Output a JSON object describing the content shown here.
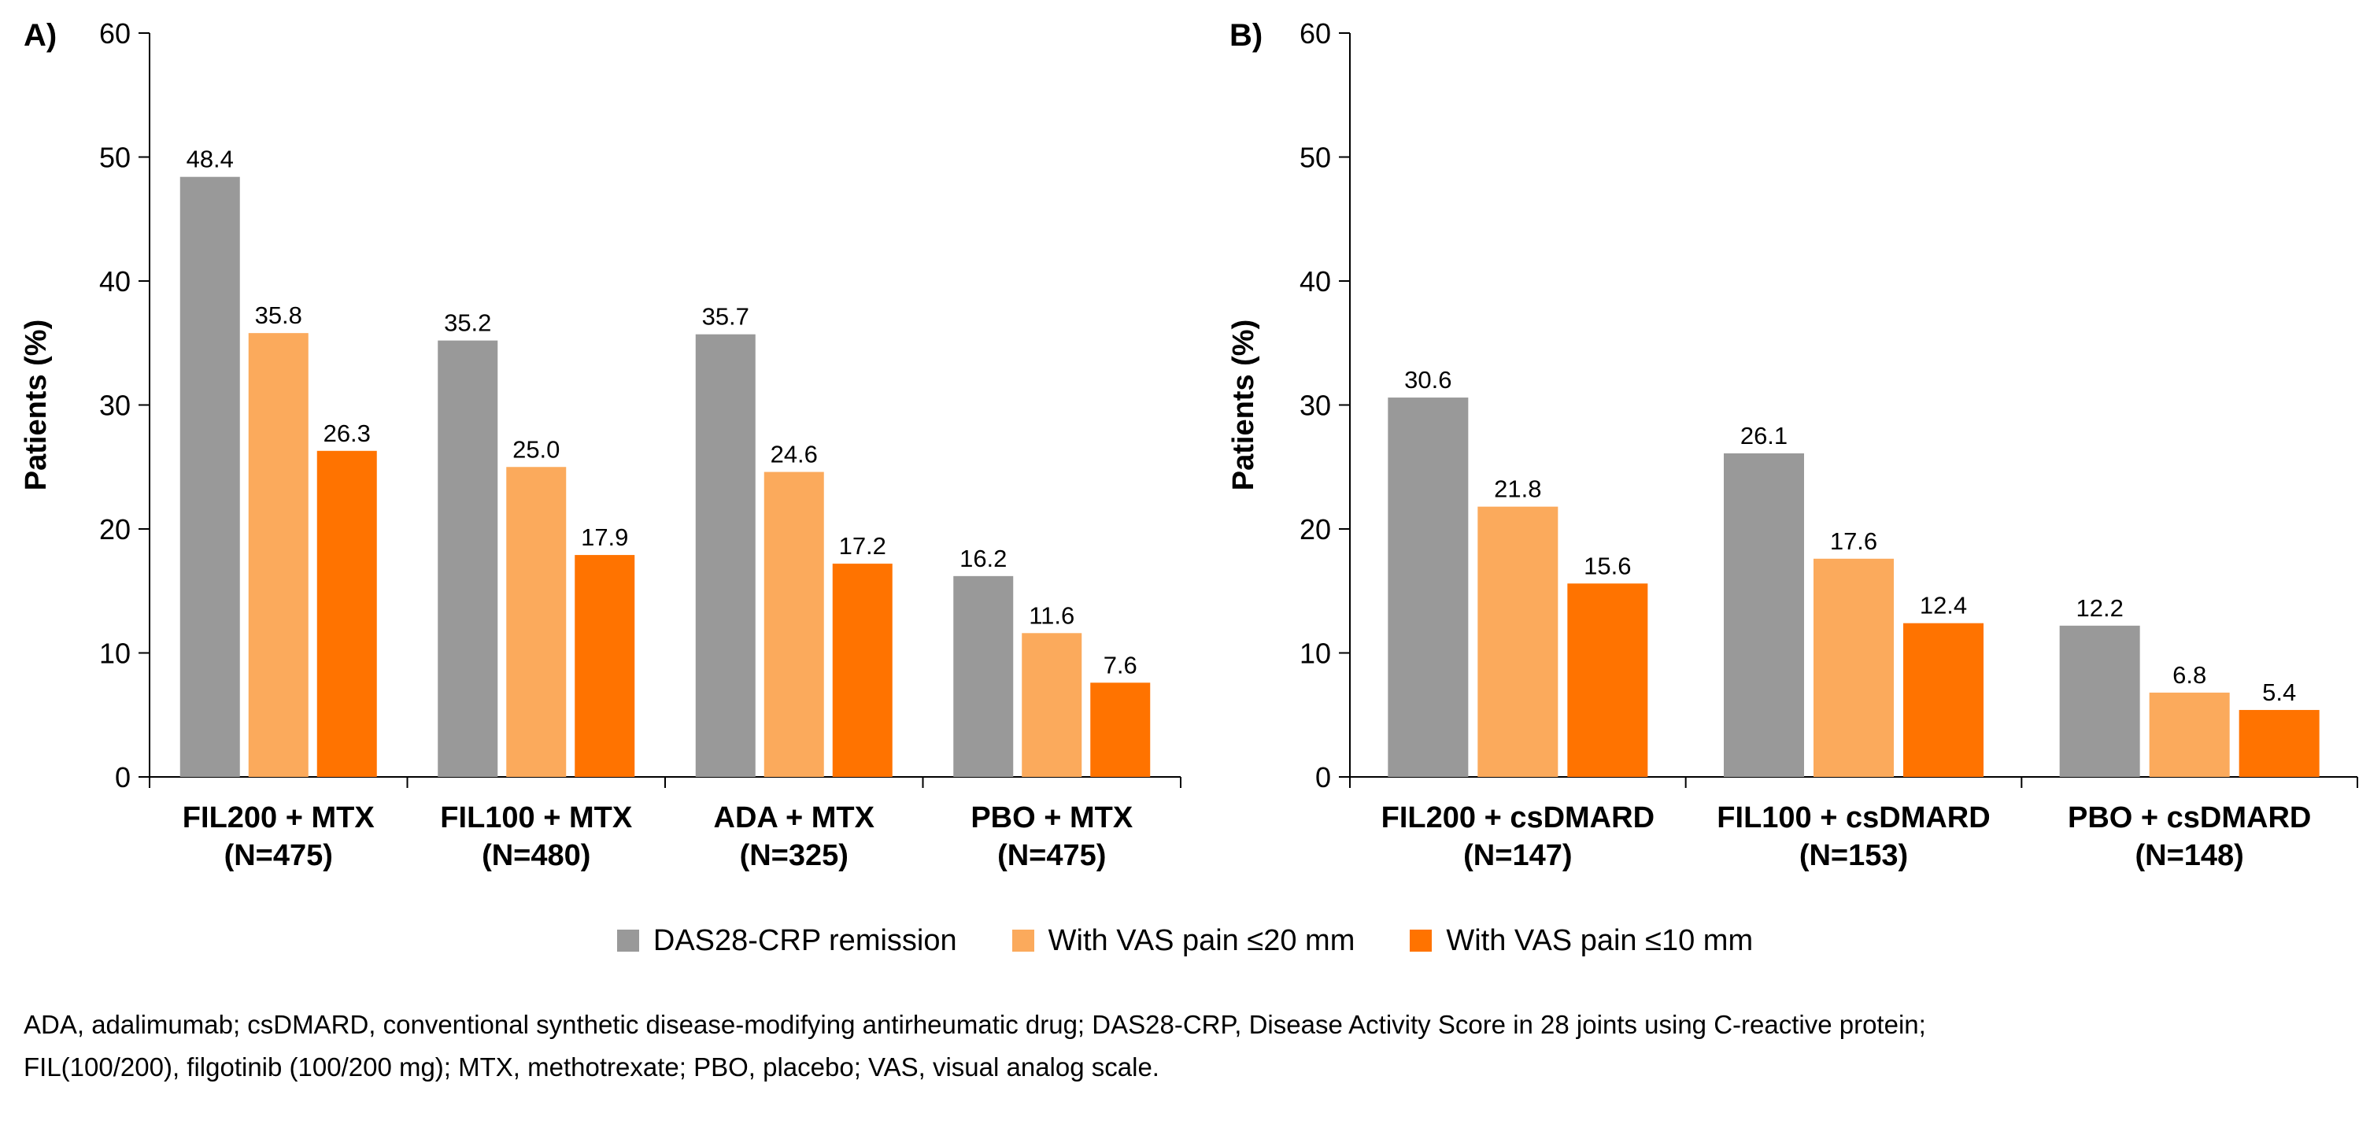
{
  "colors": {
    "das28": "#999999",
    "vas20": "#FBAA5C",
    "vas10": "#FF7300",
    "axis": "#000000"
  },
  "legend": {
    "items": [
      {
        "label": "DAS28-CRP remission",
        "color_key": "das28"
      },
      {
        "label": "With VAS pain ≤20 mm",
        "color_key": "vas20"
      },
      {
        "label": "With VAS pain ≤10 mm",
        "color_key": "vas10"
      }
    ]
  },
  "chart_data": [
    {
      "type": "bar",
      "panel_label": "A)",
      "ylabel": "Patients (%)",
      "ylim": [
        0,
        60
      ],
      "yticks": [
        0,
        10,
        20,
        30,
        40,
        50,
        60
      ],
      "categories": [
        {
          "line1": "FIL200 + MTX",
          "line2": "(N=475)"
        },
        {
          "line1": "FIL100 + MTX",
          "line2": "(N=480)"
        },
        {
          "line1": "ADA + MTX",
          "line2": "(N=325)"
        },
        {
          "line1": "PBO + MTX",
          "line2": "(N=475)"
        }
      ],
      "series": [
        {
          "name": "DAS28-CRP remission",
          "color_key": "das28",
          "values": [
            48.4,
            35.2,
            35.7,
            16.2
          ],
          "labels": [
            "48.4",
            "35.2",
            "35.7",
            "16.2"
          ]
        },
        {
          "name": "With VAS pain ≤20 mm",
          "color_key": "vas20",
          "values": [
            35.8,
            25.0,
            24.6,
            11.6
          ],
          "labels": [
            "35.8",
            "25.0",
            "24.6",
            "11.6"
          ]
        },
        {
          "name": "With VAS pain ≤10 mm",
          "color_key": "vas10",
          "values": [
            26.3,
            17.9,
            17.2,
            7.6
          ],
          "labels": [
            "26.3",
            "17.9",
            "17.2",
            "7.6"
          ]
        }
      ]
    },
    {
      "type": "bar",
      "panel_label": "B)",
      "ylabel": "Patients (%)",
      "ylim": [
        0,
        60
      ],
      "yticks": [
        0,
        10,
        20,
        30,
        40,
        50,
        60
      ],
      "categories": [
        {
          "line1": "FIL200 + csDMARD",
          "line2": "(N=147)"
        },
        {
          "line1": "FIL100 + csDMARD",
          "line2": "(N=153)"
        },
        {
          "line1": "PBO + csDMARD",
          "line2": "(N=148)"
        }
      ],
      "series": [
        {
          "name": "DAS28-CRP remission",
          "color_key": "das28",
          "values": [
            30.6,
            26.1,
            12.2
          ],
          "labels": [
            "30.6",
            "26.1",
            "12.2"
          ]
        },
        {
          "name": "With VAS pain ≤20 mm",
          "color_key": "vas20",
          "values": [
            21.8,
            17.6,
            6.8
          ],
          "labels": [
            "21.8",
            "17.6",
            "6.8"
          ]
        },
        {
          "name": "With VAS pain ≤10 mm",
          "color_key": "vas10",
          "values": [
            15.6,
            12.4,
            5.4
          ],
          "labels": [
            "15.6",
            "12.4",
            "5.4"
          ]
        }
      ]
    }
  ],
  "footnote": {
    "line1": "ADA, adalimumab; csDMARD, conventional synthetic disease-modifying antirheumatic drug; DAS28-CRP, Disease Activity Score in 28 joints using C-reactive protein;",
    "line2": "FIL(100/200), filgotinib (100/200 mg); MTX, methotrexate; PBO, placebo; VAS, visual analog scale."
  }
}
